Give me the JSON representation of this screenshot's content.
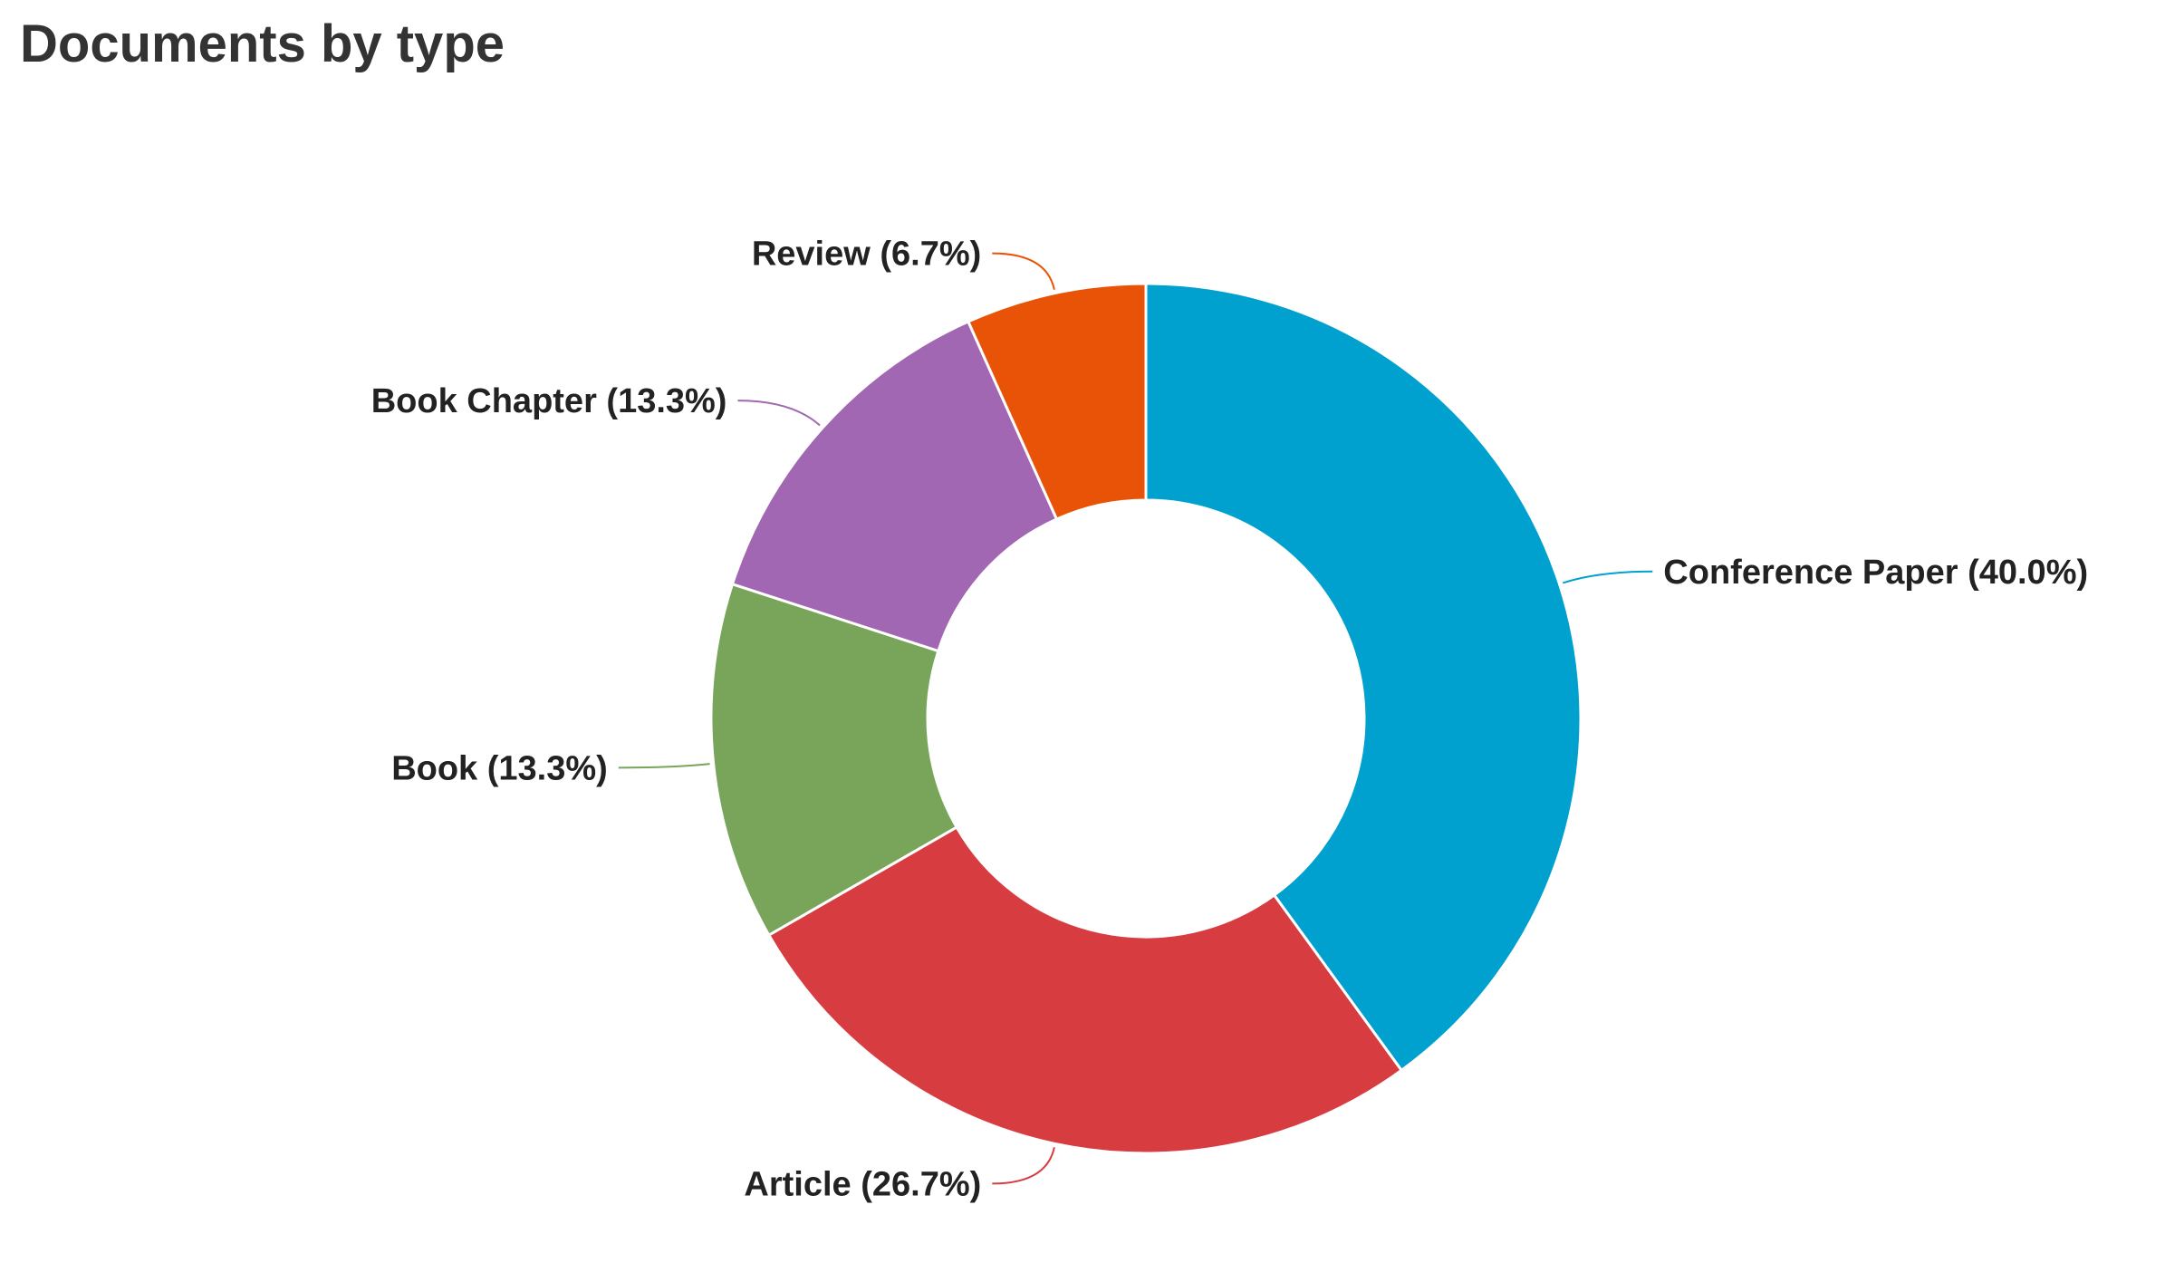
{
  "chart_data": {
    "type": "donut",
    "title": "Documents by type",
    "categories": [
      "Conference Paper (40.0%)",
      "Article (26.7%)",
      "Book (13.3%)",
      "Book Chapter (13.3%)",
      "Review (6.7%)"
    ],
    "values": [
      40.0,
      26.7,
      13.3,
      13.3,
      6.7
    ],
    "colors": [
      "#00a0cf",
      "#d73c41",
      "#78a55a",
      "#a267b2",
      "#e85308"
    ]
  }
}
